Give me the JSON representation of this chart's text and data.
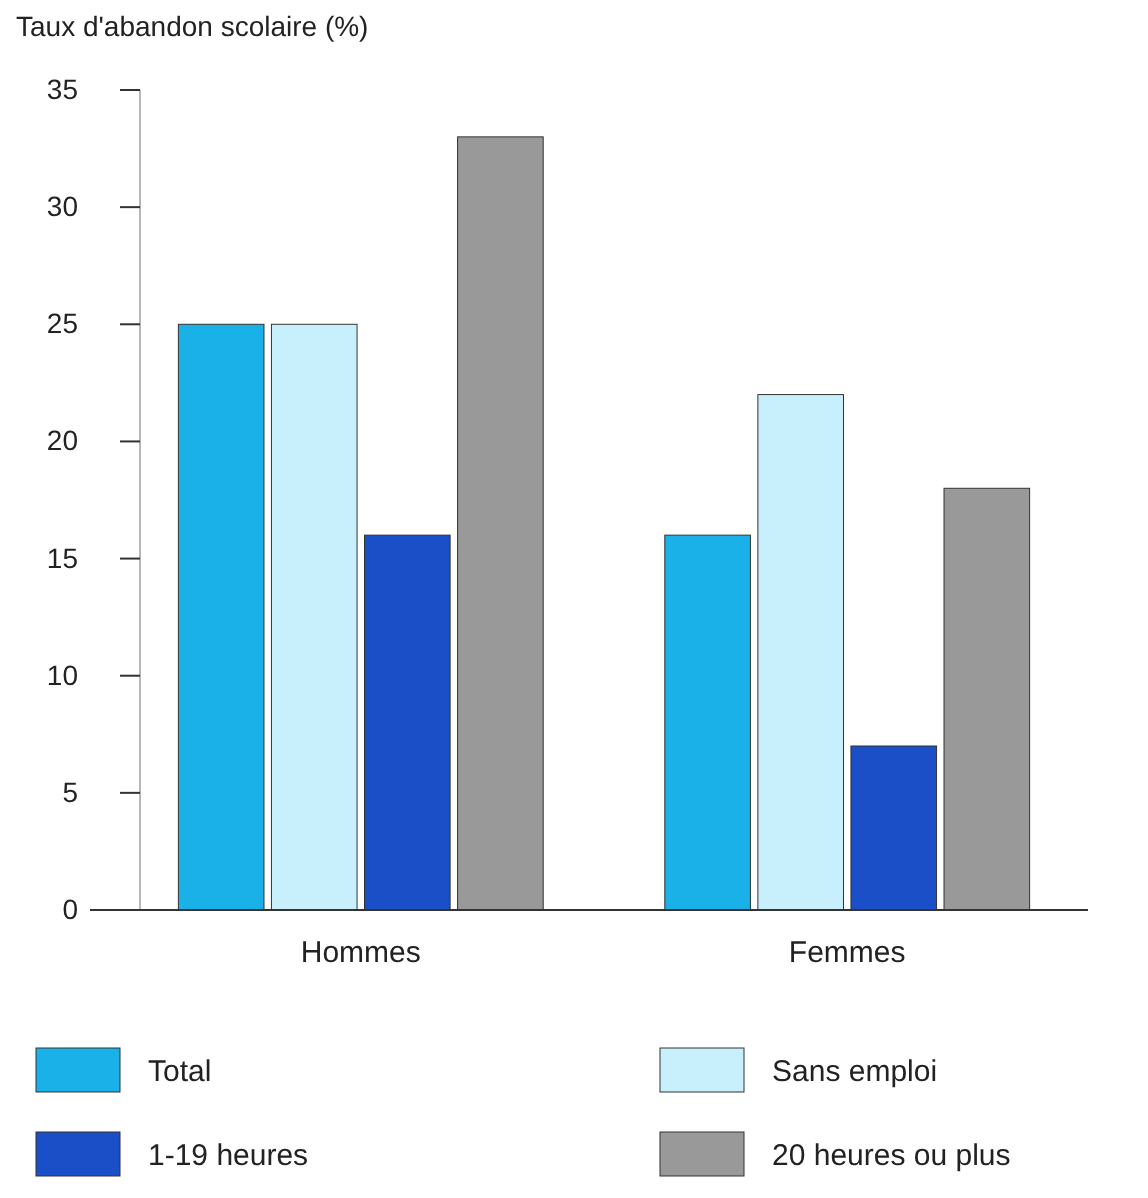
{
  "chart_data": {
    "type": "bar",
    "ylabel": "Taux d'abandon scolaire (%)",
    "categories": [
      "Hommes",
      "Femmes"
    ],
    "series": [
      {
        "name": "Total",
        "color": "#1ab0e8",
        "values": [
          25,
          16
        ]
      },
      {
        "name": "Sans emploi",
        "color": "#c8f0fc",
        "values": [
          25,
          22
        ]
      },
      {
        "name": "1-19 heures",
        "color": "#1a4fc8",
        "values": [
          16,
          7
        ]
      },
      {
        "name": "20 heures ou plus",
        "color": "#999999",
        "values": [
          33,
          18
        ]
      }
    ],
    "ylim": [
      0,
      35
    ],
    "yticks": [
      0,
      5,
      10,
      15,
      20,
      25,
      30,
      35
    ],
    "grid": false,
    "legend": "bottom"
  }
}
